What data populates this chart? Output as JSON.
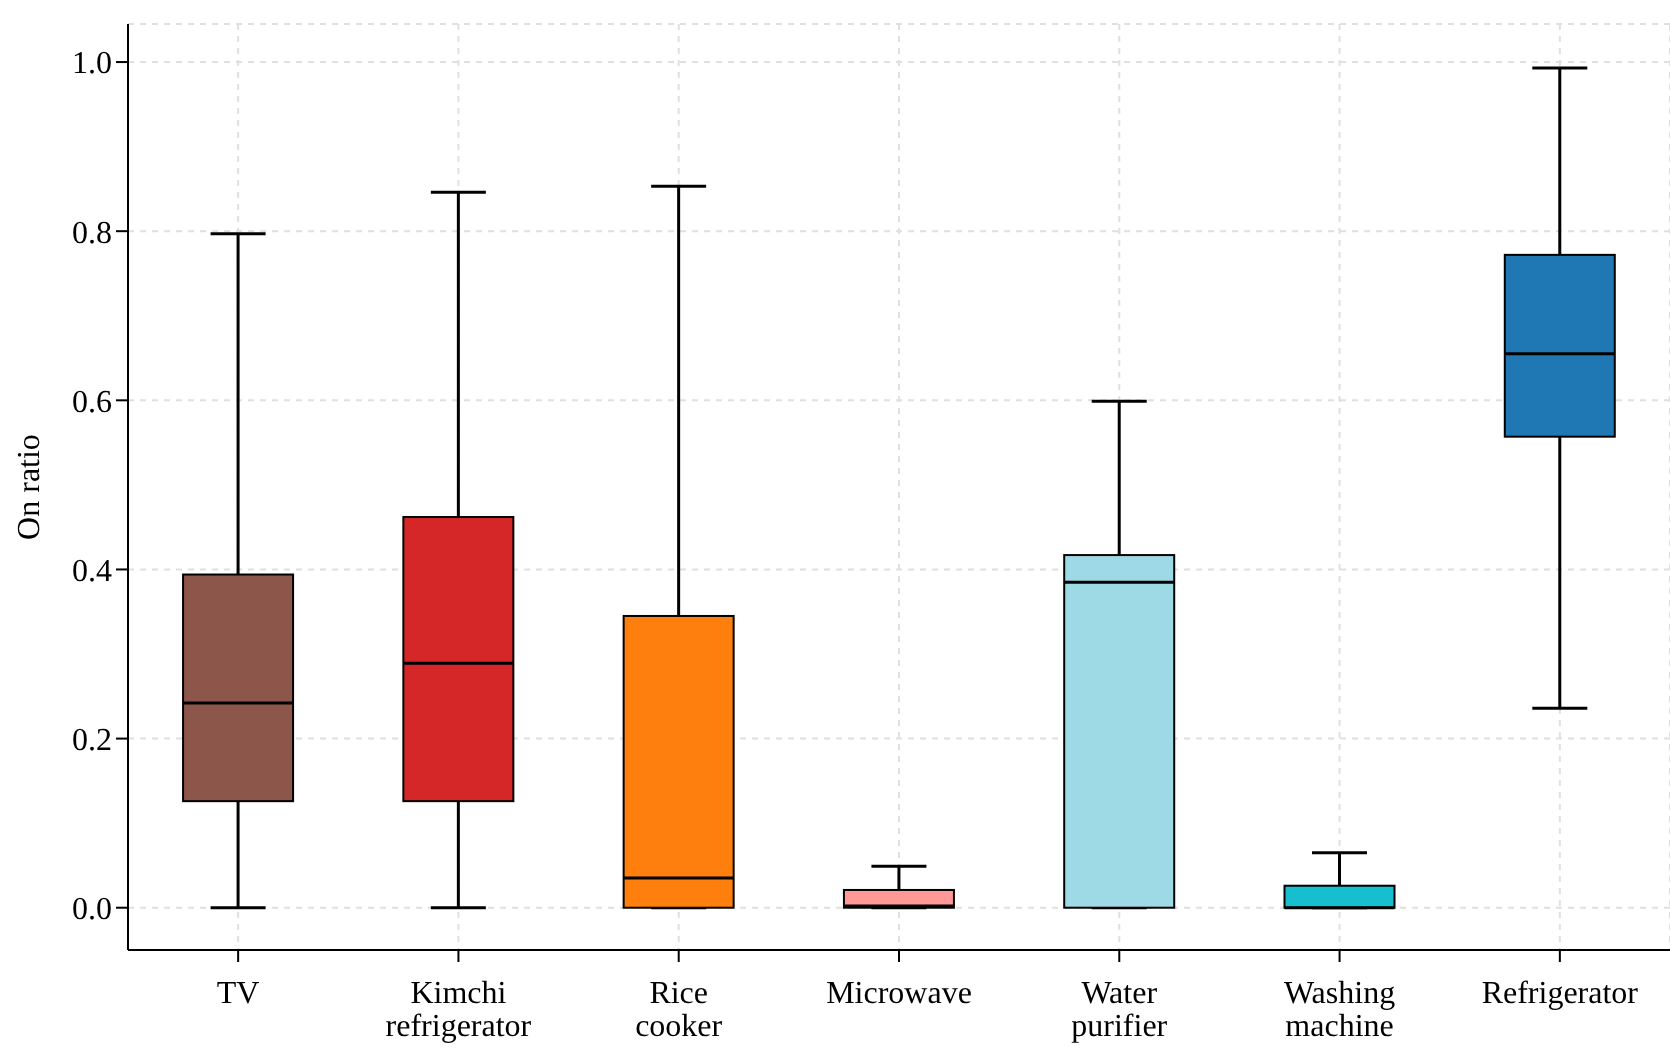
{
  "chart_data": {
    "type": "box",
    "ylabel": "On ratio",
    "categories": [
      "TV",
      "Kimchi refrigerator",
      "Rice cooker",
      "Microwave",
      "Water purifier",
      "Washing machine",
      "Refrigerator"
    ],
    "colors": [
      "#8c564b",
      "#d62728",
      "#ff7f0e",
      "#ff9896",
      "#9edae5",
      "#17becf",
      "#1f77b4"
    ],
    "boxes": [
      {
        "low": 0,
        "q1": 0.126,
        "median": 0.242,
        "q3": 0.394,
        "high": 0.797
      },
      {
        "low": 0,
        "q1": 0.126,
        "median": 0.289,
        "q3": 0.462,
        "high": 0.846
      },
      {
        "low": 0,
        "q1": 0,
        "median": 0.035,
        "q3": 0.345,
        "high": 0.853
      },
      {
        "low": 0,
        "q1": 0,
        "median": 0.002,
        "q3": 0.021,
        "high": 0.049
      },
      {
        "low": 0,
        "q1": 0,
        "median": 0.385,
        "q3": 0.417,
        "high": 0.599
      },
      {
        "low": 0,
        "q1": 0,
        "median": 0,
        "q3": 0.026,
        "high": 0.065
      },
      {
        "low": 0.236,
        "q1": 0.557,
        "median": 0.655,
        "q3": 0.772,
        "high": 0.993
      }
    ],
    "ylim": [
      -0.05,
      1.045
    ],
    "yticks": [
      {
        "value": 0,
        "label": "0.0"
      },
      {
        "value": 0.2,
        "label": "0.2"
      },
      {
        "value": 0.4,
        "label": "0.4"
      },
      {
        "value": 0.6,
        "label": "0.6"
      },
      {
        "value": 0.8,
        "label": "0.8"
      },
      {
        "value": 1,
        "label": "1.0"
      }
    ],
    "grid": true,
    "legend": false
  }
}
